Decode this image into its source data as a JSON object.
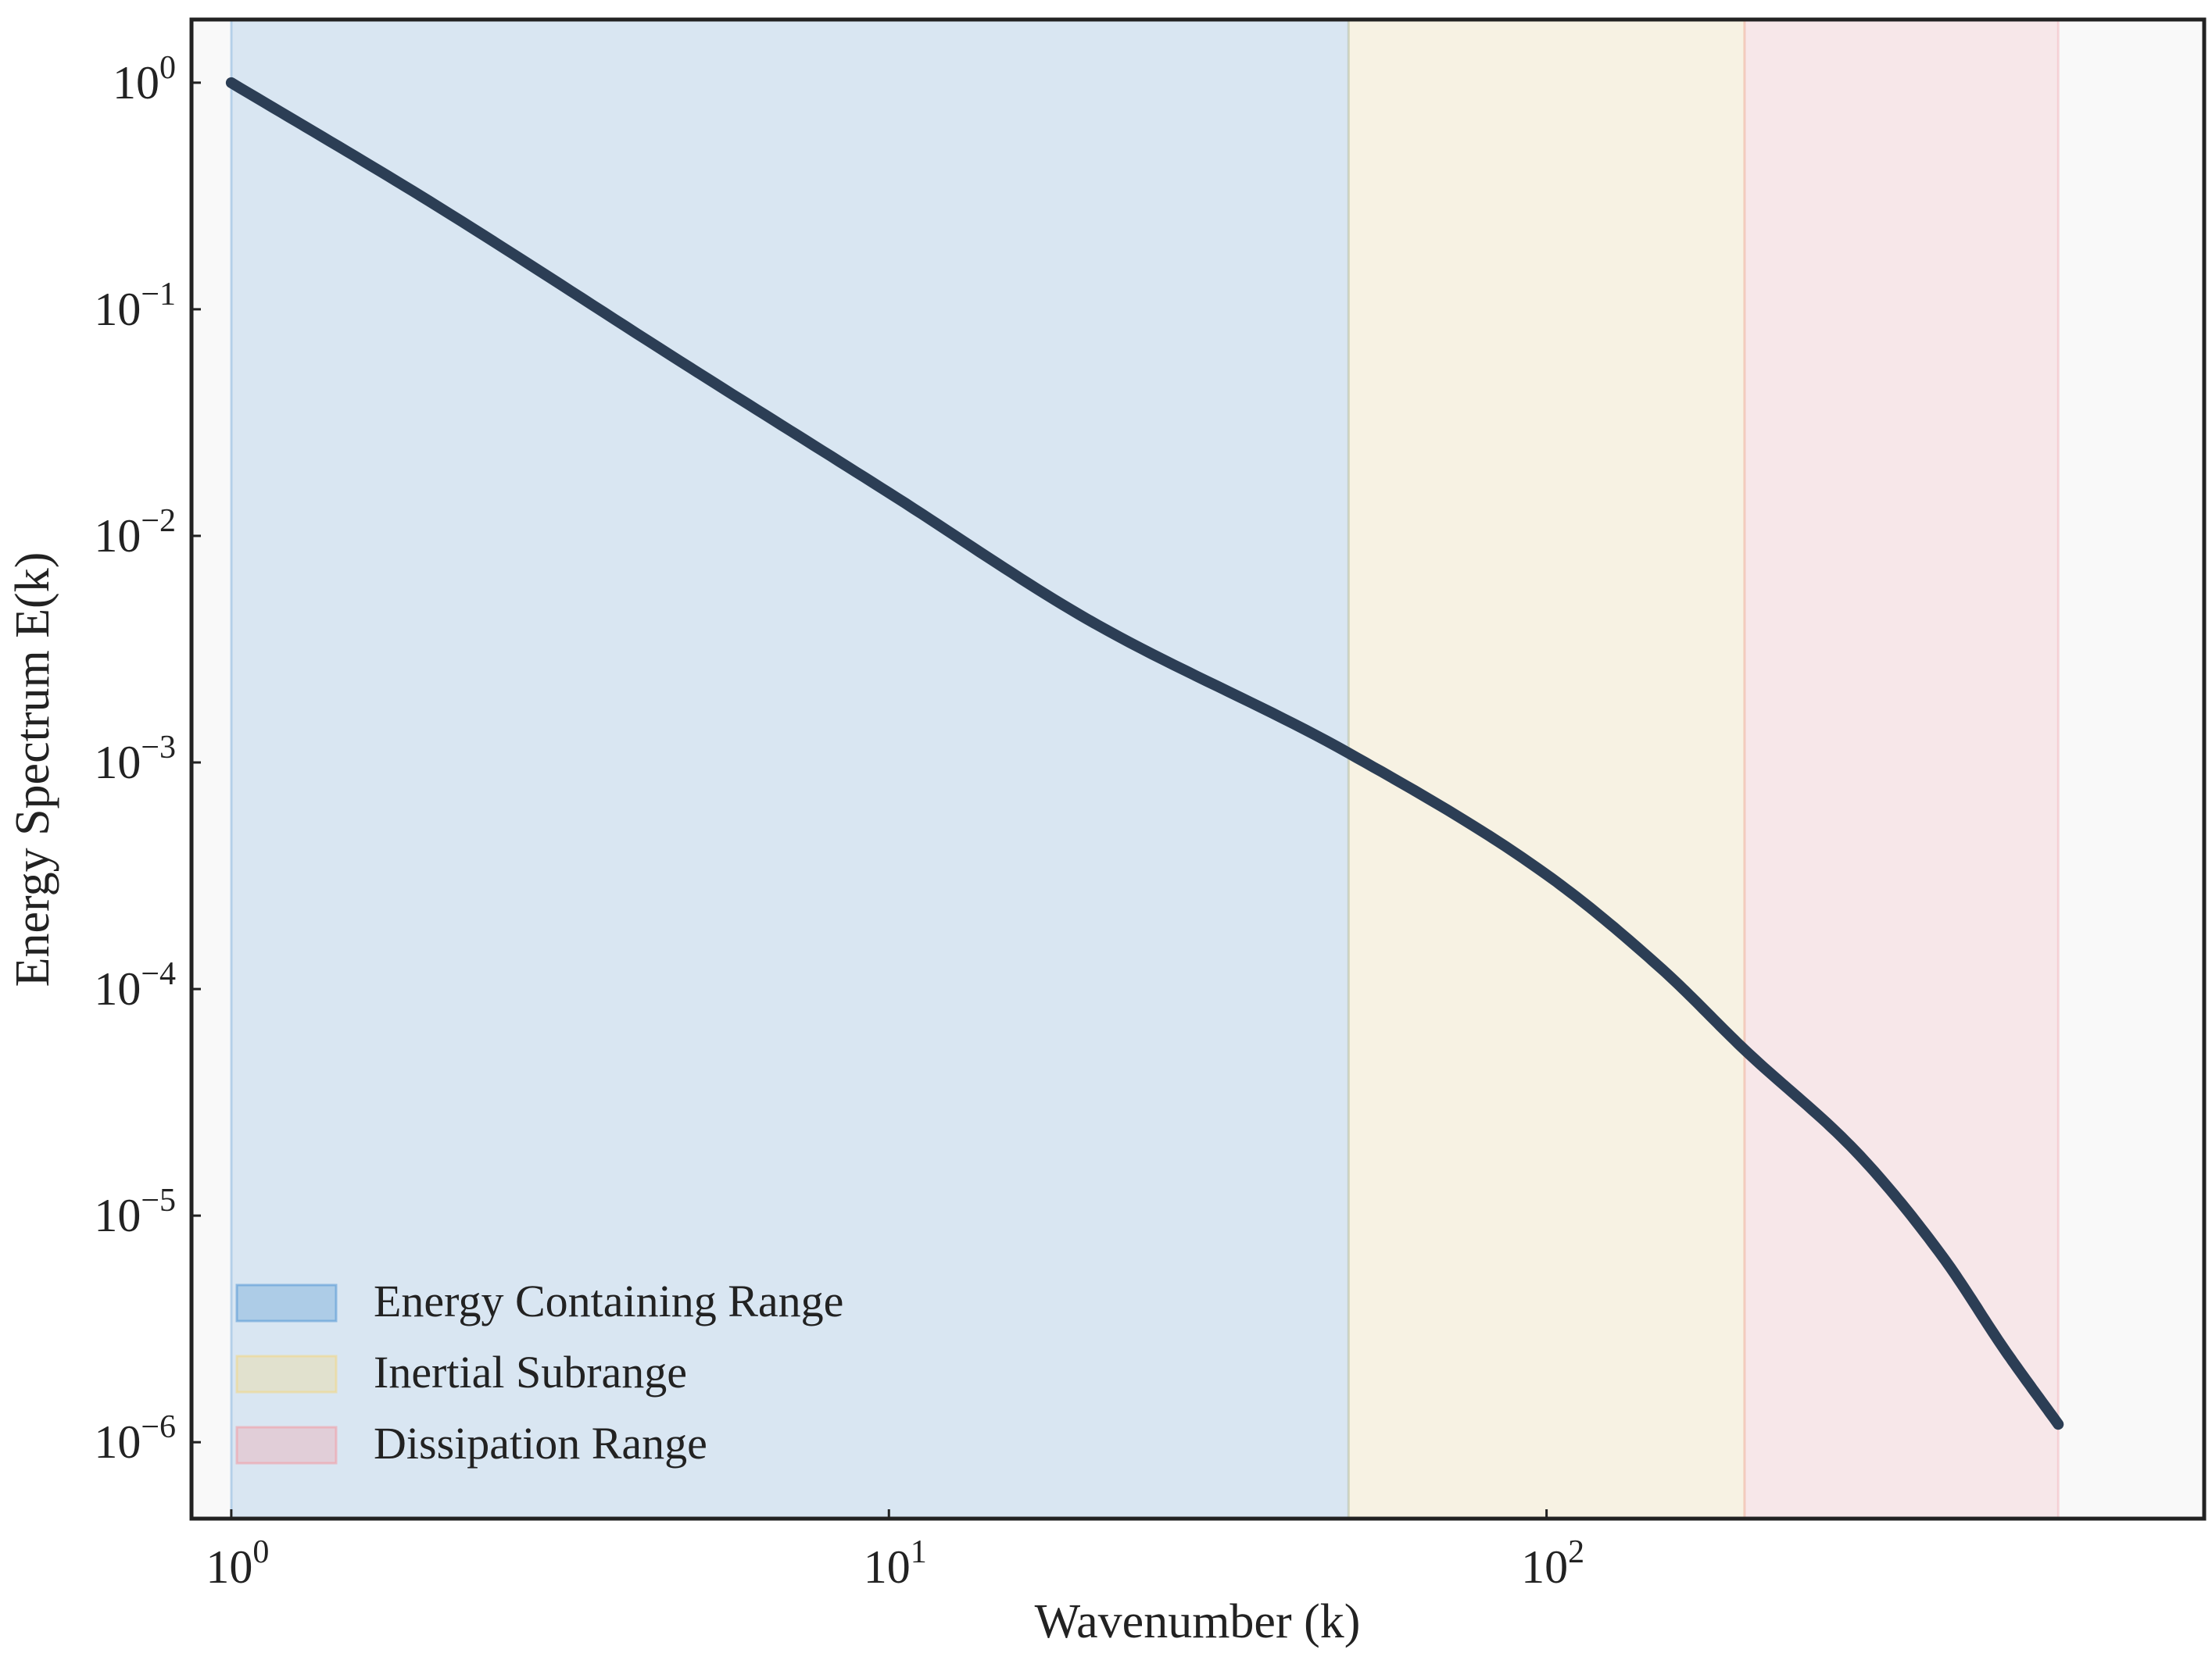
{
  "chart_data": {
    "type": "line",
    "title": "",
    "xlabel": "Wavenumber (k)",
    "ylabel": "Energy Spectrum E(k)",
    "xscale": "log",
    "yscale": "log",
    "xlim": [
      0.87,
      1000
    ],
    "ylim": [
      4.6e-07,
      1.9
    ],
    "grid": false,
    "legend_position": "lower-left",
    "x_ticks": [
      {
        "value": 1,
        "base": "10",
        "exp": "0"
      },
      {
        "value": 10,
        "base": "10",
        "exp": "1"
      },
      {
        "value": 100,
        "base": "10",
        "exp": "2"
      }
    ],
    "y_ticks": [
      {
        "value": 1,
        "base": "10",
        "exp": "0"
      },
      {
        "value": 0.1,
        "base": "10",
        "exp": "−1"
      },
      {
        "value": 0.01,
        "base": "10",
        "exp": "−2"
      },
      {
        "value": 0.001,
        "base": "10",
        "exp": "−3"
      },
      {
        "value": 0.0001,
        "base": "10",
        "exp": "−4"
      },
      {
        "value": 1e-05,
        "base": "10",
        "exp": "−5"
      },
      {
        "value": 1e-06,
        "base": "10",
        "exp": "−6"
      }
    ],
    "regions": [
      {
        "name": "Energy Containing Range",
        "x_start": 1,
        "x_end": 50,
        "color": "#5b9bd5"
      },
      {
        "name": "Inertial Subrange",
        "x_start": 50,
        "x_end": 200,
        "color": "#f0d78c"
      },
      {
        "name": "Dissipation Range",
        "x_start": 200,
        "x_end": 600,
        "color": "#f0a0a8"
      }
    ],
    "series": [
      {
        "color": "#2c3e55",
        "x": [
          1,
          2,
          5,
          10,
          20,
          50,
          100,
          150,
          200,
          300,
          400,
          500,
          600
        ],
        "y": [
          1,
          0.3,
          0.055,
          0.0155,
          0.0043,
          0.0011,
          0.00032,
          0.000122,
          5.4e-05,
          1.83e-05,
          6.6e-06,
          2.5e-06,
          1.2e-06
        ]
      }
    ]
  }
}
